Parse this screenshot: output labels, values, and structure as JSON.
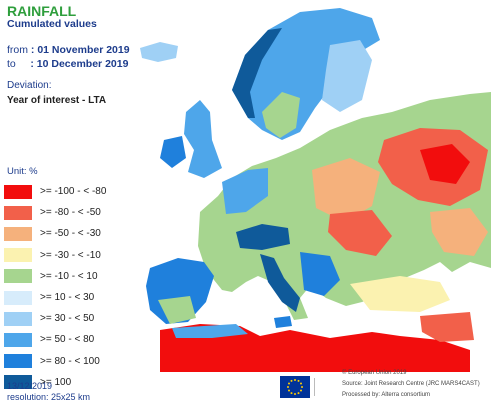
{
  "header": {
    "title": "RAINFALL",
    "subtitle": "Cumulated values",
    "from_label": "from",
    "from_date": ": 01 November 2019",
    "to_label": "to",
    "to_date": ": 10 December 2019",
    "deviation_label": "Deviation:",
    "deviation_value": "Year of interest - LTA"
  },
  "legend": {
    "unit": "Unit: %",
    "items": [
      {
        "label": ">= -100 - < -80",
        "color": "#f20d0d"
      },
      {
        "label": ">= -80 - < -50",
        "color": "#f2604a"
      },
      {
        "label": ">= -50 - < -30",
        "color": "#f5b17c"
      },
      {
        "label": ">= -30 - < -10",
        "color": "#fbf2b0"
      },
      {
        "label": ">= -10 - < 10",
        "color": "#a6d58f"
      },
      {
        "label": ">= 10 - < 30",
        "color": "#d7ecfb"
      },
      {
        "label": ">= 30 - < 50",
        "color": "#9fd0f5"
      },
      {
        "label": ">= 50 - < 80",
        "color": "#4ea6ea"
      },
      {
        "label": ">= 80 - < 100",
        "color": "#1f80dc"
      },
      {
        "label": ">= 100",
        "color": "#0f5a9a"
      }
    ]
  },
  "footer": {
    "date": "13/12/2019",
    "resolution": "resolution: 25x25 km",
    "credits": [
      "© European Union 2019",
      "Source: Joint Research Centre (JRC MARS4CAST)",
      "Processed by: Alterra consortium"
    ]
  },
  "colors": {
    "sea": "#ffffff",
    "title": "#2e9e3c",
    "text": "#1d3c8c",
    "eu_flag": "#003399",
    "eu_stars": "#ffcc00"
  }
}
